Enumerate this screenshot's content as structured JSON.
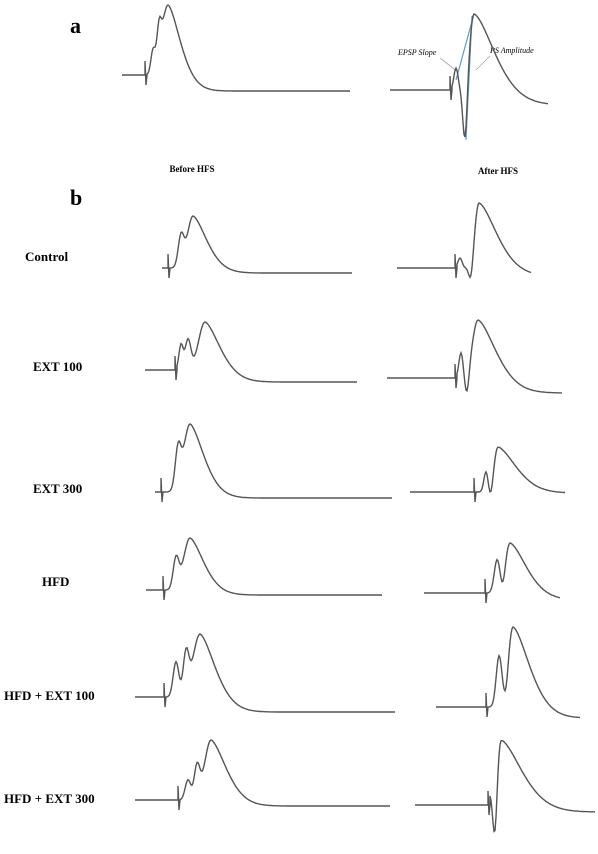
{
  "panel_a": {
    "label": "a",
    "annotations": [
      "EPSP Slope",
      "PS Amplitude"
    ],
    "captions": [
      "Before HFS",
      "After HFS"
    ]
  },
  "panel_b": {
    "label": "b",
    "rows": [
      "Control",
      "EXT 100",
      "EXT 300",
      "HFD",
      "HFD + EXT 100",
      "HFD + EXT 300"
    ]
  }
}
